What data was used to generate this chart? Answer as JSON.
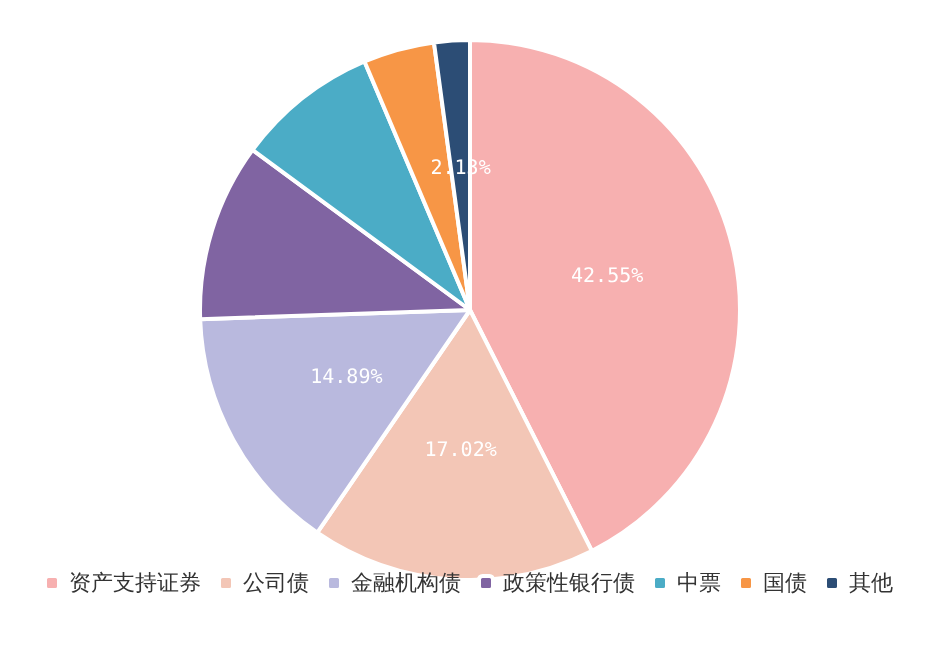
{
  "chart_data": {
    "type": "pie",
    "categories": [
      "资产支持证券",
      "公司债",
      "金融机构债",
      "政策性银行债",
      "中票",
      "国债",
      "其他"
    ],
    "values": [
      42.55,
      17.02,
      14.89,
      10.64,
      8.51,
      4.26,
      2.13
    ],
    "colors": [
      "#f7b0b0",
      "#f3c6b6",
      "#b9b9de",
      "#8064a2",
      "#4bacc6",
      "#f79646",
      "#2c4d75"
    ],
    "value_labels": [
      "42.55%",
      "17.02%",
      "14.89%",
      null,
      null,
      null,
      "2.13%"
    ],
    "legend": "bottom"
  }
}
